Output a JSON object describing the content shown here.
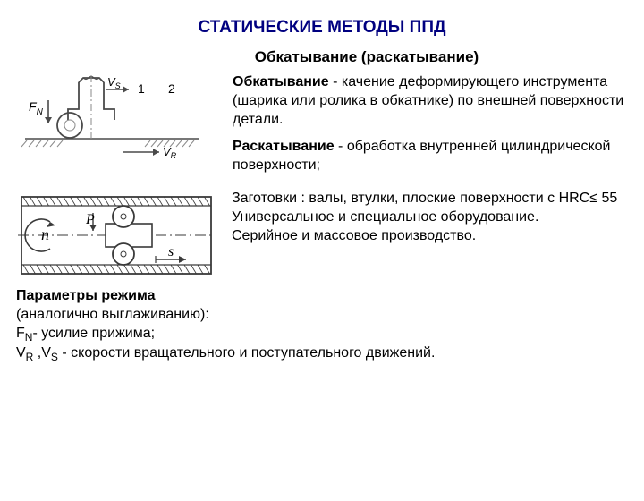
{
  "title": "СТАТИЧЕСКИЕ МЕТОДЫ ППД",
  "subtitle": "Обкатывание (раскатывание)",
  "def1_label": "Обкатывание",
  "def1_text": " - качение деформирующего инструмента (шарика или ролика в обкатнике)  по внешней поверхности детали.",
  "def2_label": "Раскатывание",
  "def2_text": " - обработка внутренней цилиндрической поверхности;",
  "notes_l1": "Заготовки : валы, втулки,  плоские поверхности с HRC≤ 55",
  "notes_l2": "Универсальное и специальное оборудование.",
  "notes_l3": "Серийное и массовое производство.",
  "params_title": "Параметры режима",
  "params_sub": "(аналогично выглаживанию):",
  "p1_sym": "F",
  "p1_sub": "N",
  "p1_txt": "- усилие прижима;",
  "p2_a": "V",
  "p2_a_sub": "R",
  "p2_sep": " ,",
  "p2_b": "V",
  "p2_b_sub": "S",
  "p2_txt": " - скорости вращательного и поступательного движений.",
  "diagram_top": {
    "fn_label": "F",
    "fn_sub": "N",
    "vs_label": "V",
    "vs_sub": "S",
    "vr_label": "V",
    "vr_sub": "R",
    "num1": "1",
    "num2": "2",
    "stroke": "#4a4a4a",
    "thin": "#8a8a8a"
  },
  "diagram_bottom": {
    "n_label": "n",
    "p_label": "P",
    "s_label": "s",
    "stroke": "#3a3a3a"
  }
}
